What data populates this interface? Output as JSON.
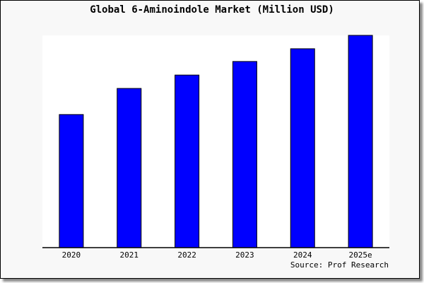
{
  "chart_data": {
    "type": "bar",
    "title": "Global 6-Aminoindole Market (Million USD)",
    "categories": [
      "2020",
      "2021",
      "2022",
      "2023",
      "2024",
      "2025e"
    ],
    "values": [
      62.7,
      75.0,
      81.3,
      87.7,
      93.7,
      100
    ],
    "value_note_scale": "relative, 2025e = 100 (no y-axis printed)",
    "ylim": [
      0,
      100
    ],
    "xlabel": "",
    "ylabel": "",
    "grid": false,
    "bar_color": "#0000ff",
    "source": "Source: Prof Research"
  }
}
